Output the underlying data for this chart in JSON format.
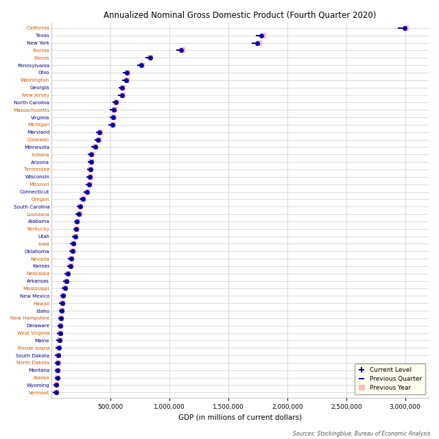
{
  "title": "Annualized Nominal Gross Domestic Product (Fourth Quarter 2020)",
  "xlabel": "GDP (in millions of current dollars)",
  "source": "Sources: Stockingblue, Bureau of Economic Analysis",
  "states": [
    "California",
    "Texas",
    "New York",
    "Florida",
    "Illinois",
    "Pennsylvania",
    "Ohio",
    "Washington",
    "Georgia",
    "New Jersey",
    "North Carolina",
    "Massachusetts",
    "Virginia",
    "Michigan",
    "Maryland",
    "Colorado",
    "Minnesota",
    "Indiana",
    "Arizona",
    "Tennessee",
    "Wisconsin",
    "Missouri",
    "Connecticut",
    "Oregon",
    "South Carolina",
    "Louisiana",
    "Alabama",
    "Kentucky",
    "Utah",
    "Iowa",
    "Oklahoma",
    "Nevada",
    "Kansas",
    "Nebraska",
    "Arkansas",
    "Mississippi",
    "New Mexico",
    "Hawaii",
    "Idaho",
    "New Hampshire",
    "Delaware",
    "West Virginia",
    "Maine",
    "Rhode Island",
    "South Dakota",
    "North Dakota",
    "Montana",
    "Alaska",
    "Wyoming",
    "Vermont"
  ],
  "current": [
    2995000,
    1779000,
    1745000,
    1101000,
    836000,
    762000,
    638000,
    632000,
    602000,
    601000,
    549000,
    529000,
    526000,
    516000,
    407000,
    395000,
    371000,
    340000,
    336000,
    329000,
    325000,
    320000,
    301000,
    266000,
    243000,
    230000,
    218000,
    212000,
    201000,
    186000,
    179000,
    167000,
    162000,
    137000,
    126000,
    115000,
    99000,
    91000,
    87000,
    82000,
    77000,
    74000,
    68000,
    61000,
    56000,
    55000,
    52000,
    52000,
    39000,
    38000
  ],
  "prev_quarter": [
    2960000,
    1755000,
    1720000,
    1082000,
    822000,
    750000,
    628000,
    622000,
    592000,
    589000,
    539000,
    520000,
    516000,
    507000,
    400000,
    388000,
    363000,
    333000,
    329000,
    323000,
    318000,
    313000,
    295000,
    260000,
    238000,
    226000,
    213000,
    207000,
    195000,
    182000,
    175000,
    163000,
    158000,
    134000,
    123000,
    112000,
    97000,
    89000,
    85000,
    80000,
    75000,
    72000,
    66000,
    59000,
    54000,
    53000,
    50000,
    51000,
    38000,
    37000
  ],
  "prev_year": [
    3010000,
    1795000,
    1760000,
    1110000,
    840000,
    768000,
    643000,
    638000,
    607000,
    606000,
    554000,
    534000,
    530000,
    521000,
    411000,
    399000,
    375000,
    344000,
    340000,
    333000,
    329000,
    324000,
    305000,
    269000,
    246000,
    241000,
    221000,
    214000,
    203000,
    188000,
    181000,
    170000,
    164000,
    139000,
    127000,
    116000,
    100000,
    93000,
    88000,
    83000,
    78000,
    75000,
    69000,
    63000,
    57000,
    56000,
    53000,
    53000,
    40000,
    39000
  ],
  "orange_states": [
    "California",
    "Florida",
    "Illinois",
    "Washington",
    "New Jersey",
    "Massachusetts",
    "Michigan",
    "Colorado",
    "Indiana",
    "Tennessee",
    "Missouri",
    "Oregon",
    "Louisiana",
    "Kentucky",
    "Iowa",
    "Nevada",
    "Nebraska",
    "Mississippi",
    "Hawaii",
    "New Hampshire",
    "West Virginia",
    "Rhode Island",
    "North Dakota",
    "Alaska",
    "Vermont"
  ],
  "xlim": [
    0,
    3200000
  ],
  "xticks": [
    500000,
    1000000,
    1500000,
    2000000,
    2500000,
    3000000
  ],
  "xticklabels": [
    "500,000",
    "1,000,000",
    "1,500,000",
    "2,000,000",
    "2,500,000",
    "3,000,000"
  ],
  "dot_color": "#0000CD",
  "prev_q_color": "#00008B",
  "prev_y_color": "#FFB6C1",
  "legend_bg": "#FFFFF0",
  "orange_color": "#CC5500",
  "blue_color": "#000080"
}
